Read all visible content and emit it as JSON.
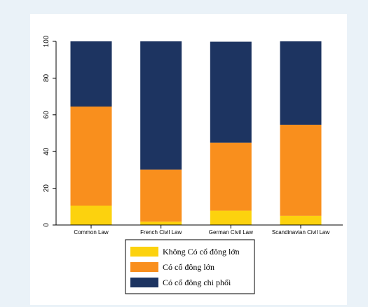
{
  "chart_data": {
    "type": "bar",
    "stacked": true,
    "categories": [
      "Common Law",
      "French Civil Law",
      "German Civil Law",
      "Scandinavian Civil Law"
    ],
    "series": [
      {
        "name": "Không Có cổ đông lớn",
        "color": "#fcd20e",
        "values": [
          10.5,
          1.8,
          7.8,
          5.0
        ]
      },
      {
        "name": "Có cổ đông lớn",
        "color": "#f98f1d",
        "values": [
          54.0,
          28.4,
          37.0,
          49.6
        ]
      },
      {
        "name": "Có cổ đông chi phối",
        "color": "#1d3461",
        "values": [
          35.5,
          69.8,
          55.0,
          45.4
        ]
      }
    ],
    "yticks": [
      0,
      20,
      40,
      60,
      80,
      100
    ],
    "ylim": [
      0,
      100
    ],
    "title": "",
    "xlabel": "",
    "ylabel": "",
    "legend_position": "bottom-center",
    "grid": false
  }
}
